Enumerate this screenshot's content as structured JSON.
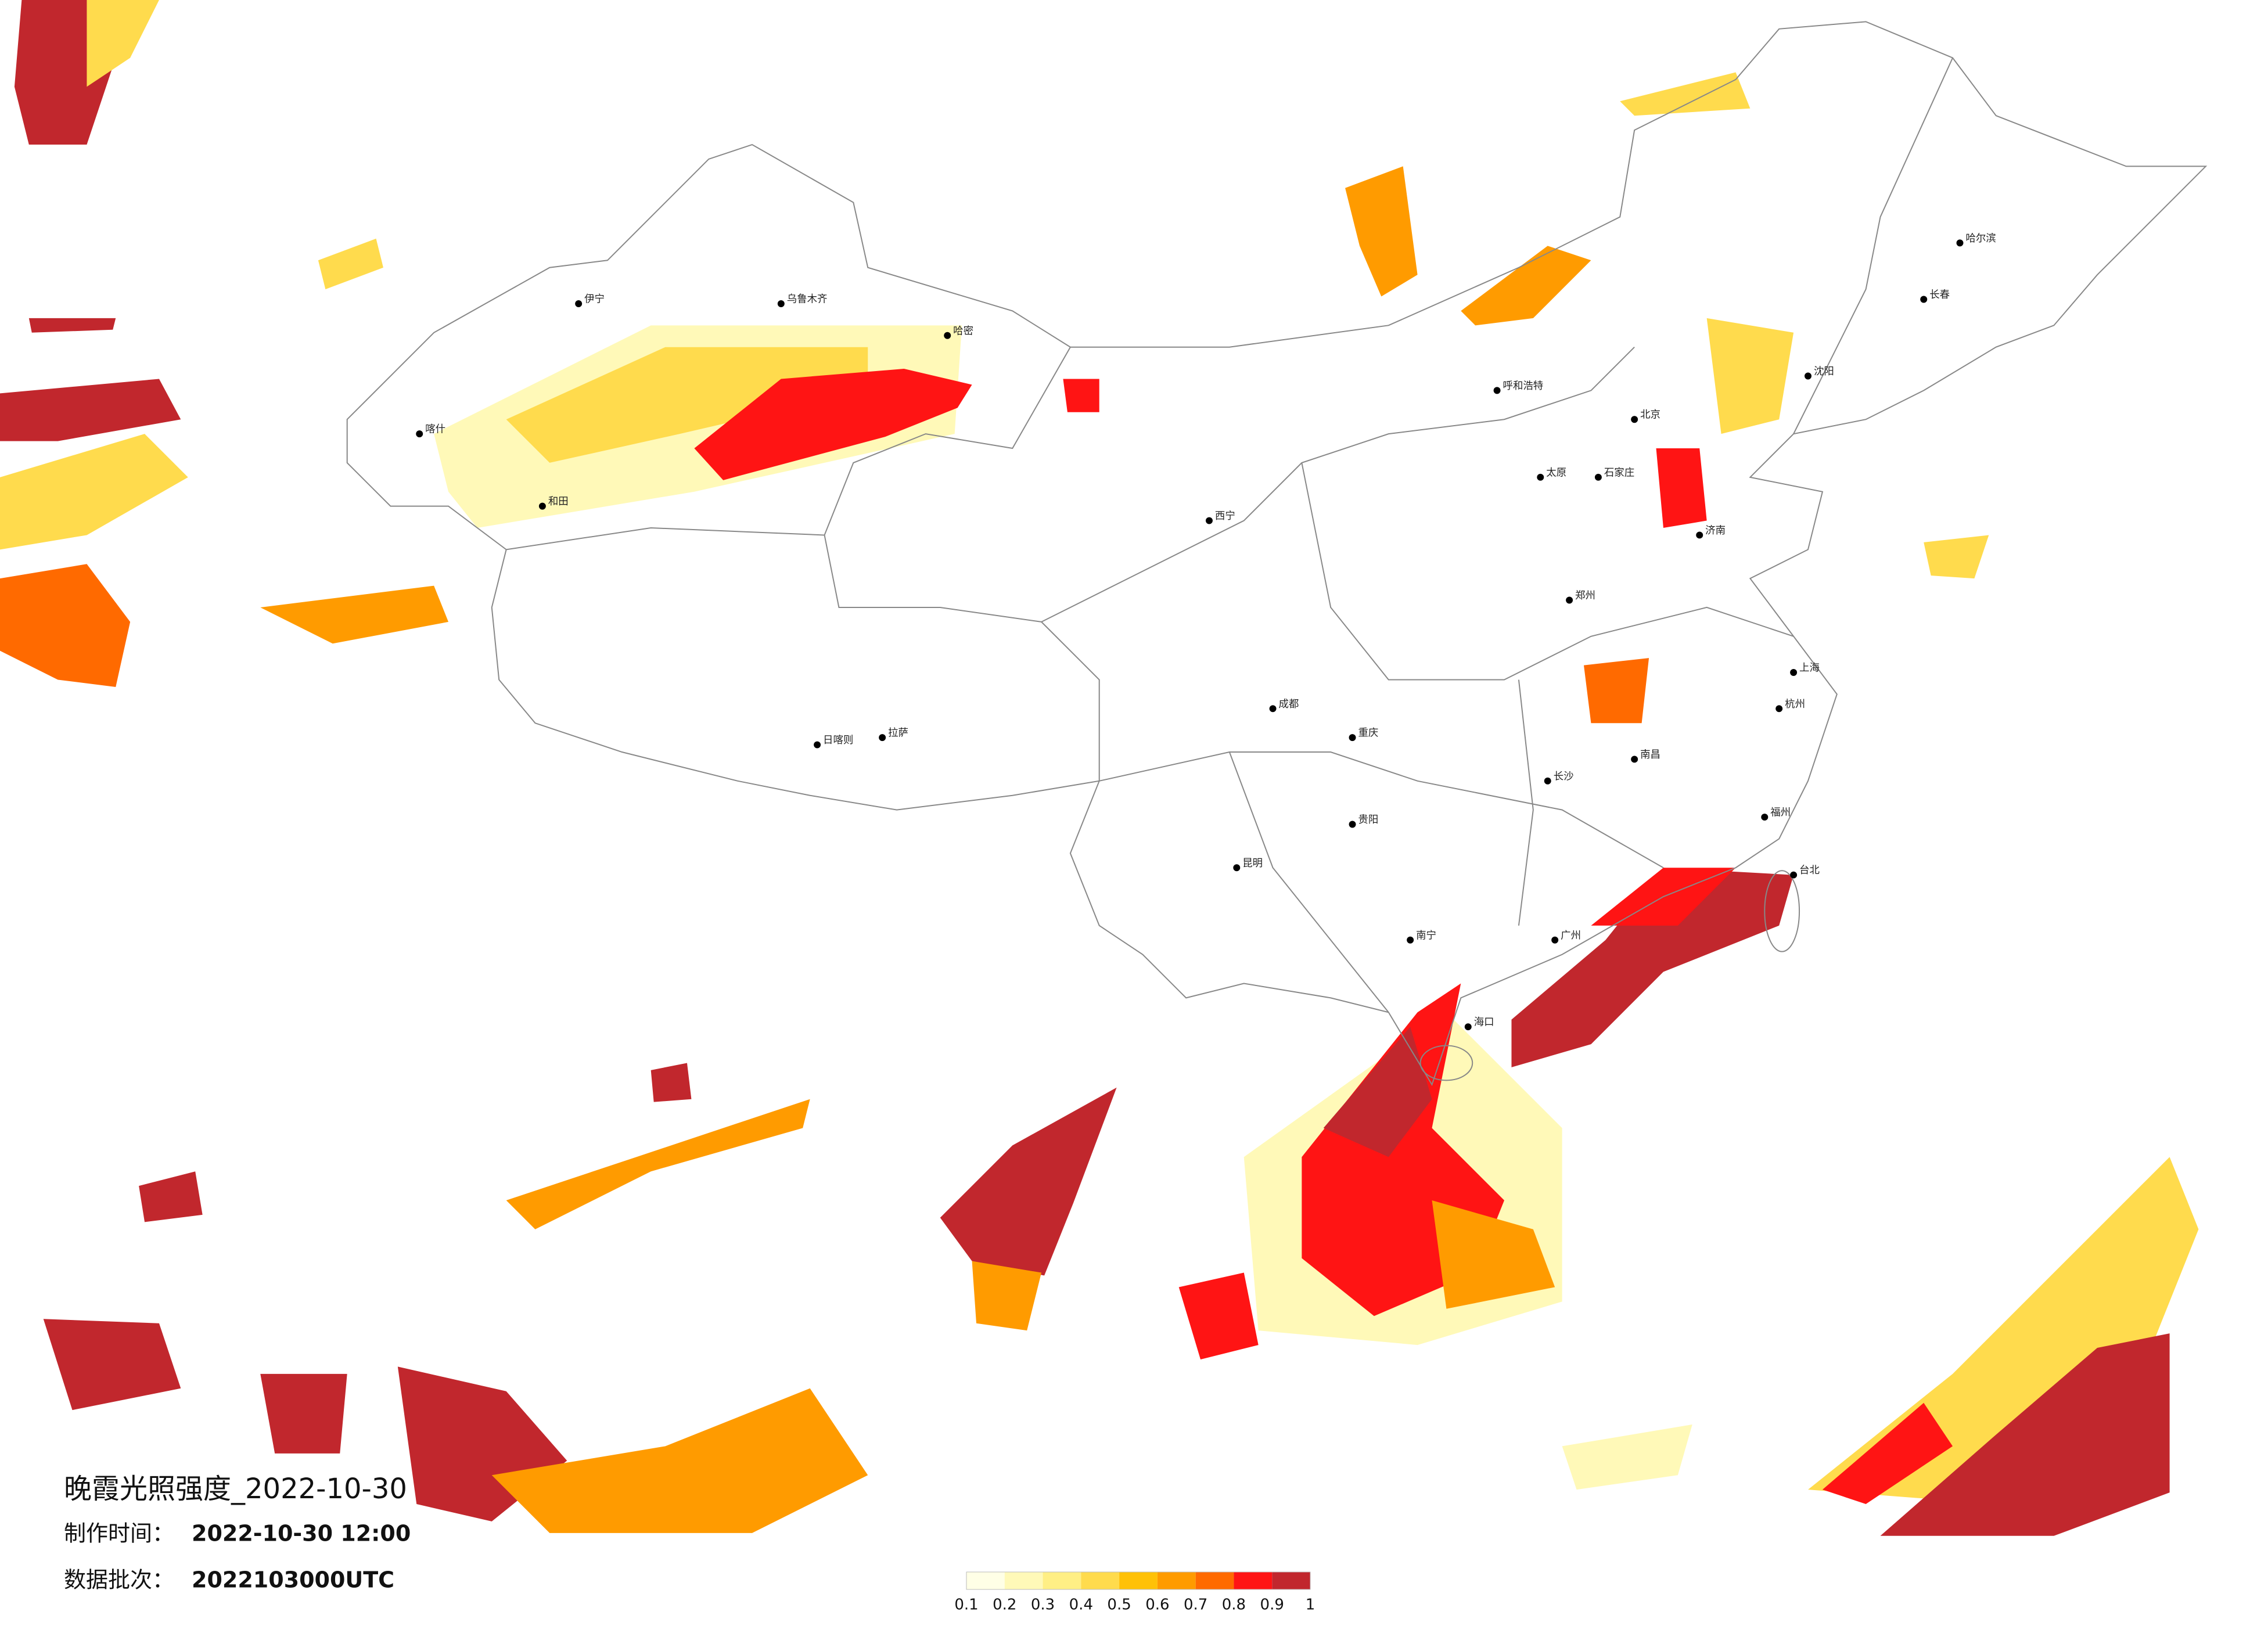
{
  "title": "晚霞光照强度_2022-10-30",
  "info": [
    {
      "label": "制作时间：",
      "value": "2022-10-30 12:00"
    },
    {
      "label": "数据批次：",
      "value": "2022103000UTC"
    }
  ],
  "colorbar": {
    "ticks": [
      0.1,
      0.2,
      0.3,
      0.4,
      0.5,
      0.6,
      0.7,
      0.8,
      0.9,
      1
    ],
    "colors": [
      "#ffffe6",
      "#fff9b8",
      "#ffef85",
      "#ffdb4d",
      "#ffc107",
      "#ff9b00",
      "#ff6a00",
      "#ff1414",
      "#c1272d"
    ]
  },
  "cities": [
    "北京",
    "上海",
    "广州",
    "哈尔滨",
    "长春",
    "沈阳",
    "呼和浩特",
    "乌鲁木齐",
    "拉萨",
    "日喀则",
    "成都",
    "昆明",
    "贵阳",
    "南宁",
    "海口",
    "重庆",
    "长沙",
    "南昌",
    "福州",
    "杭州",
    "郑州",
    "济南",
    "太原",
    "石家庄",
    "喀什",
    "和田",
    "伊宁",
    "台北",
    "西宁",
    "哈密"
  ]
}
